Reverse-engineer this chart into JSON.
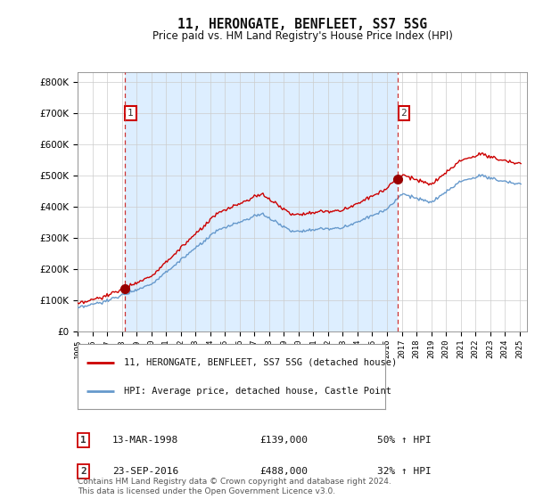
{
  "title": "11, HERONGATE, BENFLEET, SS7 5SG",
  "subtitle": "Price paid vs. HM Land Registry's House Price Index (HPI)",
  "legend_entry1": "11, HERONGATE, BENFLEET, SS7 5SG (detached house)",
  "legend_entry2": "HPI: Average price, detached house, Castle Point",
  "sale1_label": "1",
  "sale1_date": "13-MAR-1998",
  "sale1_price": "£139,000",
  "sale1_hpi": "50% ↑ HPI",
  "sale2_label": "2",
  "sale2_date": "23-SEP-2016",
  "sale2_price": "£488,000",
  "sale2_hpi": "32% ↑ HPI",
  "sale1_year": 1998.2,
  "sale1_value": 139000,
  "sale2_year": 2016.73,
  "sale2_value": 488000,
  "price_line_color": "#cc0000",
  "hpi_line_color": "#6699cc",
  "vline_color": "#cc3333",
  "shade_color": "#ddeeff",
  "grid_color": "#cccccc",
  "background_color": "#ffffff",
  "ylim": [
    0,
    830000
  ],
  "xlim_start": 1995,
  "xlim_end": 2025.5,
  "copyright_text": "Contains HM Land Registry data © Crown copyright and database right 2024.\nThis data is licensed under the Open Government Licence v3.0."
}
